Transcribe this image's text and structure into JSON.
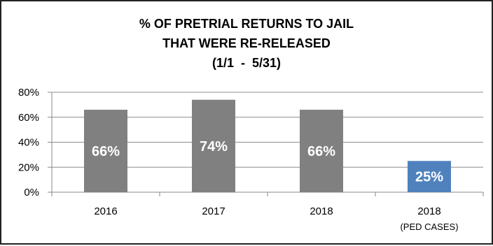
{
  "chart_data": {
    "type": "bar",
    "title_lines": [
      "% OF PRETRIAL RETURNS TO JAIL",
      "THAT WERE RE-RELEASED",
      "(1/1  -  5/31)"
    ],
    "categories": [
      "2016",
      "2017",
      "2018",
      "2018"
    ],
    "category_sublabels": [
      "",
      "",
      "",
      "(PED CASES)"
    ],
    "values": [
      66,
      74,
      66,
      25
    ],
    "data_labels": [
      "66%",
      "74%",
      "66%",
      "25%"
    ],
    "colors": [
      "#808080",
      "#808080",
      "#808080",
      "#4f81bd"
    ],
    "ylim": [
      0,
      80
    ],
    "yticks": [
      0,
      20,
      40,
      60,
      80
    ],
    "ytick_labels": [
      "0%",
      "20%",
      "40%",
      "60%",
      "80%"
    ],
    "xlabel": "",
    "ylabel": "",
    "grid": true,
    "legend": "none"
  }
}
